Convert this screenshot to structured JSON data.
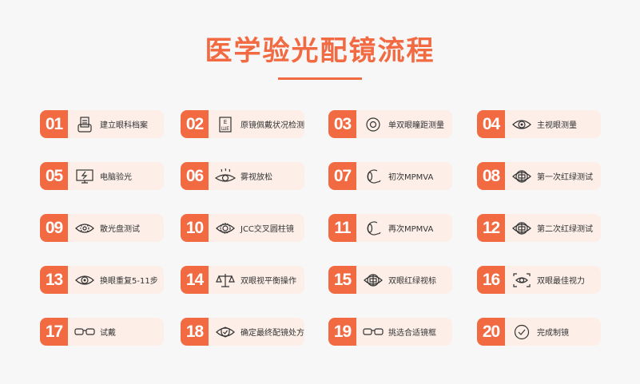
{
  "title": "医学验光配镜流程",
  "colors": {
    "accent": "#f26a42",
    "card_bg": "#fdefe8",
    "background": "#f7f7f7"
  },
  "steps": [
    {
      "num": "01",
      "label": "建立眼科档案",
      "icon": "printer-icon"
    },
    {
      "num": "02",
      "label": "原镜佩戴状况检测",
      "icon": "eye-chart-icon"
    },
    {
      "num": "03",
      "label": "单双眼瞳距测量",
      "icon": "pupil-icon"
    },
    {
      "num": "04",
      "label": "主视眼测量",
      "icon": "eye-icon"
    },
    {
      "num": "05",
      "label": "电脑验光",
      "icon": "monitor-icon"
    },
    {
      "num": "06",
      "label": "雾视放松",
      "icon": "relaxed-eye-icon"
    },
    {
      "num": "07",
      "label": "初次MPMVA",
      "icon": "eyeball-side-icon"
    },
    {
      "num": "08",
      "label": "第一次红绿测试",
      "icon": "red-green-eye-icon"
    },
    {
      "num": "09",
      "label": "散光盘测试",
      "icon": "astigmatism-eye-icon"
    },
    {
      "num": "10",
      "label": "JCC交叉圆柱镜",
      "icon": "jcc-eye-icon"
    },
    {
      "num": "11",
      "label": "再次MPMVA",
      "icon": "eyeball-side-icon"
    },
    {
      "num": "12",
      "label": "第二次红绿测试",
      "icon": "red-green-eye-icon"
    },
    {
      "num": "13",
      "label": "换眼重复5-11步",
      "icon": "eye-icon"
    },
    {
      "num": "14",
      "label": "双眼视平衡操作",
      "icon": "balance-icon"
    },
    {
      "num": "15",
      "label": "双眼红绿视标",
      "icon": "red-green-eye-icon"
    },
    {
      "num": "16",
      "label": "双眼最佳视力",
      "icon": "eye-scan-icon"
    },
    {
      "num": "17",
      "label": "试戴",
      "icon": "glasses-icon"
    },
    {
      "num": "18",
      "label": "确定最终配镜处方",
      "icon": "shield-check-icon"
    },
    {
      "num": "19",
      "label": "挑选合适镜框",
      "icon": "glasses-icon"
    },
    {
      "num": "20",
      "label": "完成制镜",
      "icon": "check-circle-icon"
    }
  ]
}
